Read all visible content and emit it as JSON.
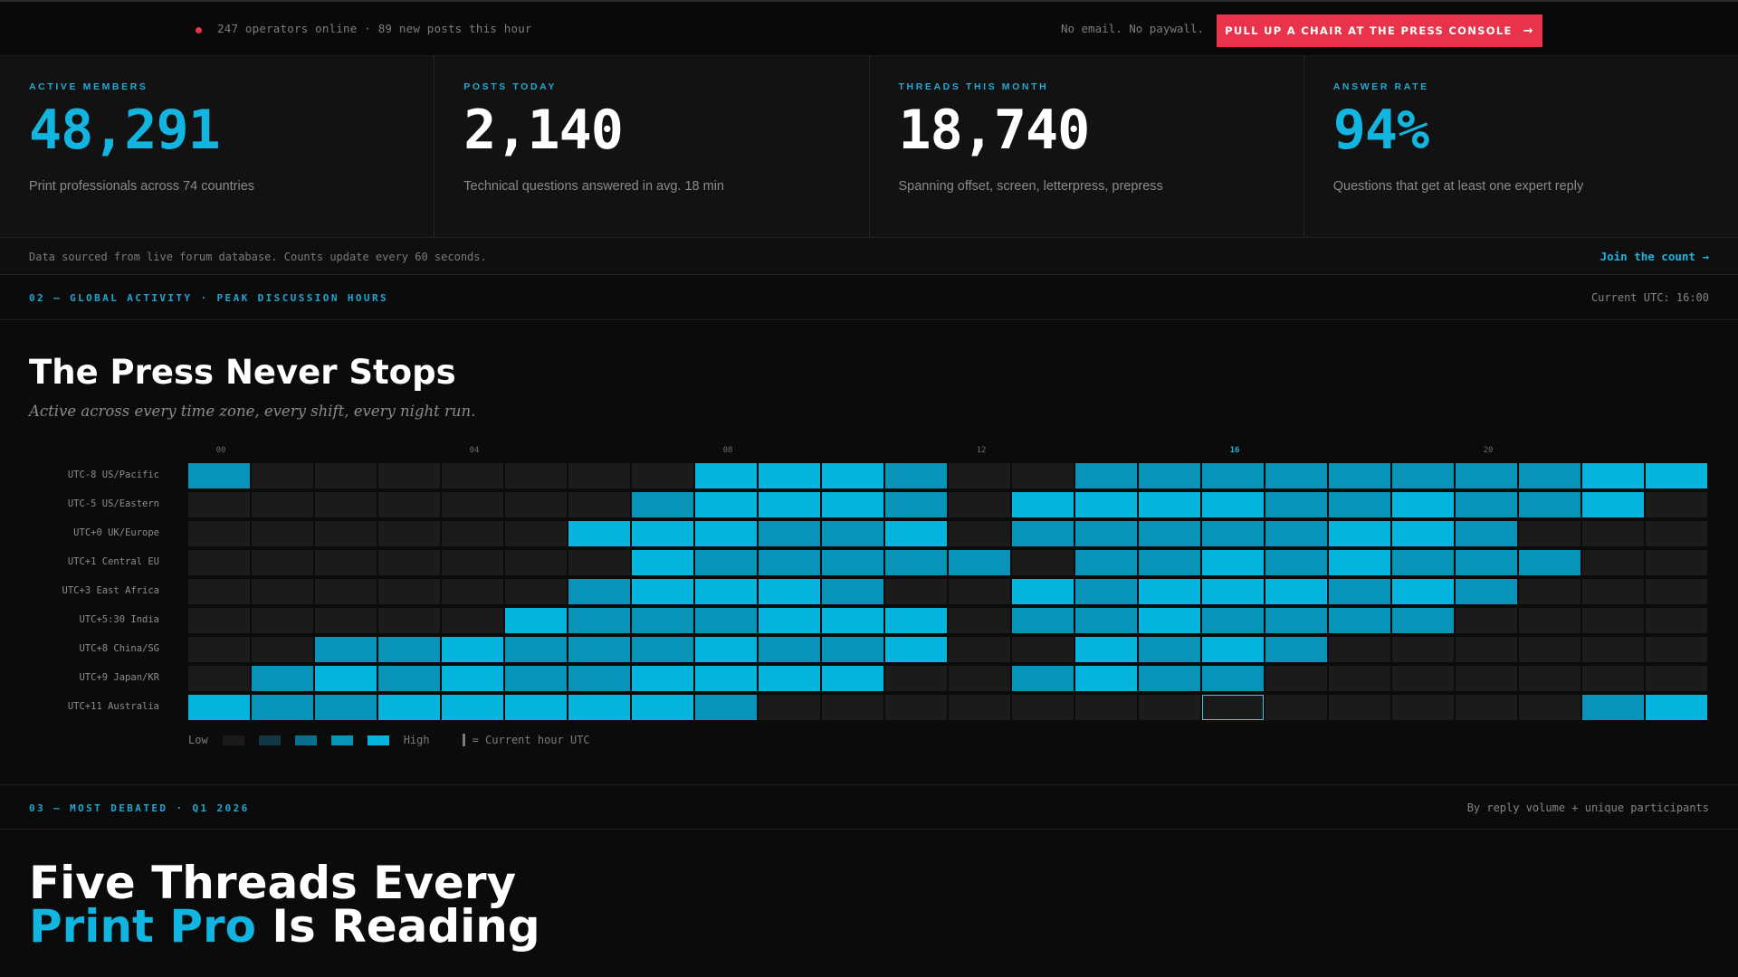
{
  "topbar": {
    "live_text": "247 operators online · 89 new posts this hour",
    "promise": "No email. No paywall.",
    "cta_label": "PULL UP A CHAIR AT THE PRESS CONSOLE",
    "cta_arrow": "→",
    "accent_color": "#e8334a"
  },
  "stats": [
    {
      "label": "ACTIVE MEMBERS",
      "value": "48,291",
      "desc": "Print professionals across 74 countries",
      "accent": true
    },
    {
      "label": "POSTS TODAY",
      "value": "2,140",
      "desc": "Technical questions answered in avg. 18 min",
      "accent": false
    },
    {
      "label": "THREADS THIS MONTH",
      "value": "18,740",
      "desc": "Spanning offset, screen, letterpress, prepress",
      "accent": false
    },
    {
      "label": "ANSWER RATE",
      "value": "94%",
      "desc": "Questions that get at least one expert reply",
      "accent": true
    }
  ],
  "source": {
    "text": "Data sourced from live forum database. Counts update every 60 seconds.",
    "join": "Join the count →"
  },
  "section2": {
    "label": "02 — GLOBAL ACTIVITY · PEAK DISCUSSION HOURS",
    "right": "Current UTC: 16:00",
    "title": "The Press Never Stops",
    "subtitle": "Active across every time zone, every shift, every night run."
  },
  "chart_data": {
    "type": "heatmap",
    "x_ticks": [
      "00",
      "04",
      "08",
      "12",
      "16",
      "20"
    ],
    "current_hour": 16,
    "levels": [
      "#1b1b1b",
      "#123846",
      "#0a6f8f",
      "#0894b9",
      "#06b5de"
    ],
    "rows": [
      {
        "label": "UTC-8 US/Pacific",
        "values": [
          3,
          0,
          0,
          0,
          0,
          0,
          0,
          0,
          4,
          4,
          4,
          3,
          0,
          0,
          3,
          3,
          3,
          3,
          3,
          3,
          3,
          3,
          4,
          4
        ]
      },
      {
        "label": "UTC-5 US/Eastern",
        "values": [
          0,
          0,
          0,
          0,
          0,
          0,
          0,
          3,
          4,
          4,
          4,
          3,
          0,
          4,
          4,
          4,
          4,
          3,
          3,
          4,
          3,
          3,
          4,
          0
        ]
      },
      {
        "label": "UTC+0 UK/Europe",
        "values": [
          0,
          0,
          0,
          0,
          0,
          0,
          4,
          4,
          4,
          3,
          3,
          4,
          0,
          3,
          3,
          3,
          3,
          3,
          4,
          4,
          3,
          0,
          0,
          0
        ]
      },
      {
        "label": "UTC+1 Central EU",
        "values": [
          0,
          0,
          0,
          0,
          0,
          0,
          0,
          4,
          3,
          3,
          3,
          3,
          3,
          0,
          3,
          3,
          4,
          3,
          4,
          3,
          3,
          3,
          0,
          0
        ]
      },
      {
        "label": "UTC+3 East Africa",
        "values": [
          0,
          0,
          0,
          0,
          0,
          0,
          3,
          4,
          4,
          4,
          3,
          0,
          0,
          4,
          3,
          4,
          4,
          4,
          3,
          4,
          3,
          0,
          0,
          0
        ]
      },
      {
        "label": "UTC+5:30 India",
        "values": [
          0,
          0,
          0,
          0,
          0,
          4,
          3,
          3,
          3,
          4,
          4,
          4,
          0,
          3,
          3,
          4,
          3,
          3,
          3,
          3,
          0,
          0,
          0,
          0
        ]
      },
      {
        "label": "UTC+8 China/SG",
        "values": [
          0,
          0,
          3,
          3,
          4,
          3,
          3,
          3,
          4,
          3,
          3,
          4,
          0,
          0,
          4,
          3,
          4,
          3,
          0,
          0,
          0,
          0,
          0,
          0
        ]
      },
      {
        "label": "UTC+9 Japan/KR",
        "values": [
          0,
          3,
          4,
          3,
          4,
          3,
          3,
          4,
          4,
          4,
          4,
          0,
          0,
          3,
          4,
          3,
          3,
          0,
          0,
          0,
          0,
          0,
          0,
          0
        ]
      },
      {
        "label": "UTC+11 Australia",
        "values": [
          4,
          3,
          3,
          4,
          4,
          4,
          4,
          4,
          3,
          0,
          0,
          0,
          0,
          0,
          0,
          0,
          0,
          0,
          0,
          0,
          0,
          0,
          3,
          4
        ]
      }
    ],
    "legend": {
      "low": "Low",
      "high": "High",
      "current": "= Current hour UTC"
    }
  },
  "section3": {
    "label": "03 — MOST DEBATED · Q1 2026",
    "right": "By reply volume + unique participants",
    "title_line1": "Five Threads Every",
    "title_accent": "Print Pro",
    "title_rest": " Is Reading"
  }
}
